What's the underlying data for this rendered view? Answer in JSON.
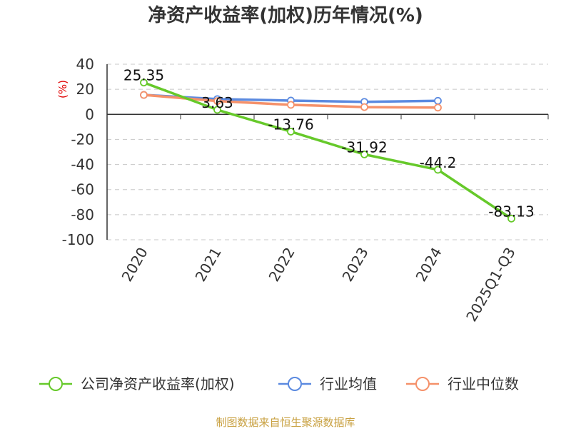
{
  "chart_data": {
    "type": "line",
    "title": "净资产收益率(加权)历年情况(%)",
    "ylabel": "(%)",
    "xlabel": "",
    "categories": [
      "2020",
      "2021",
      "2022",
      "2023",
      "2024",
      "2025Q1-Q3"
    ],
    "yticks": [
      "40",
      "20",
      "0",
      "-20",
      "-40",
      "-60",
      "-80",
      "-100"
    ],
    "ylim": [
      -100,
      40
    ],
    "grid": true,
    "legend_position": "bottom",
    "series": [
      {
        "name": "公司净资产收益率(加权)",
        "color": "#66c92a",
        "values": [
          25.35,
          3.63,
          -13.76,
          -31.92,
          -44.2,
          -83.13
        ],
        "labels": [
          "25.35",
          "3.63",
          "-13.76",
          "-31.92",
          "-44.2",
          "-83.13"
        ]
      },
      {
        "name": "行业均值",
        "color": "#5b8ae0",
        "values": [
          15.5,
          12.2,
          11.0,
          10.0,
          10.8,
          null
        ]
      },
      {
        "name": "行业中位数",
        "color": "#f5916a",
        "values": [
          15.5,
          10.6,
          7.6,
          5.8,
          5.4,
          null
        ]
      }
    ]
  },
  "source": "制图数据来自恒生聚源数据库"
}
